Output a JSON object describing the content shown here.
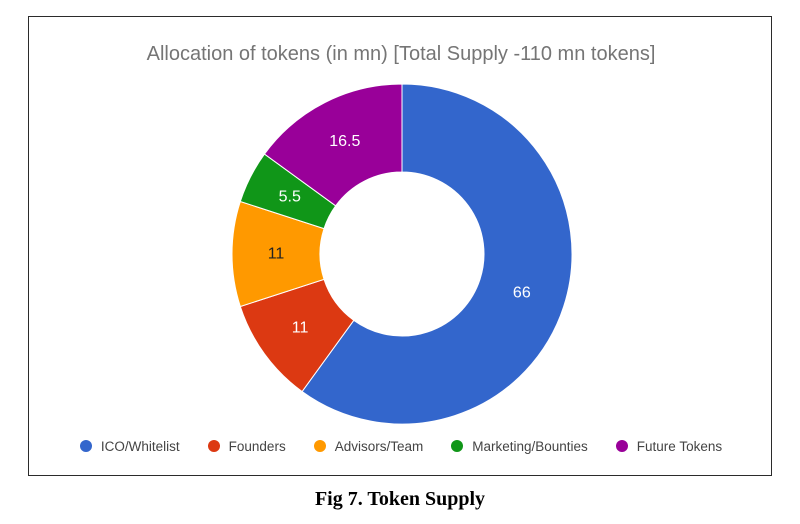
{
  "chart_data": {
    "type": "pie",
    "donut": true,
    "title": "Allocation of tokens (in mn) [Total Supply -110 mn tokens]",
    "categories": [
      "ICO/Whitelist",
      "Founders",
      "Advisors/Team",
      "Marketing/Bounties",
      "Future Tokens"
    ],
    "values": [
      66,
      11,
      11,
      5.5,
      16.5
    ],
    "data_labels": [
      "66",
      "11",
      "11",
      "5.5",
      "16.5"
    ],
    "colors": [
      "#3366cc",
      "#dc3912",
      "#ff9900",
      "#109618",
      "#990099"
    ],
    "label_colors": [
      "#ffffff",
      "#ffffff",
      "#222222",
      "#ffffff",
      "#ffffff"
    ],
    "legend_position": "bottom"
  },
  "caption": "Fig 7. Token Supply"
}
